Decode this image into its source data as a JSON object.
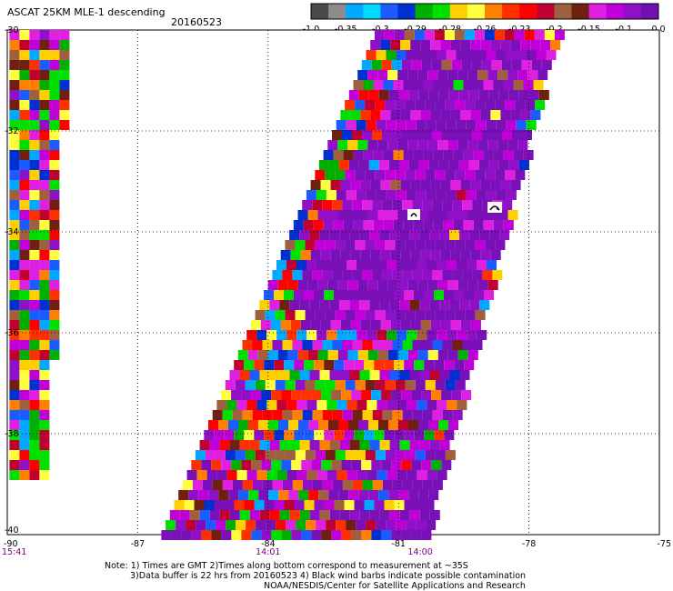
{
  "header": {
    "product": "ASCAT 25KM MLE-1 descending",
    "date": "20160523"
  },
  "colorbar": {
    "colors": [
      "#4a4a4a",
      "#8c8c8c",
      "#00a8ff",
      "#00d8ff",
      "#1a5cff",
      "#0030d0",
      "#00b000",
      "#00e000",
      "#ffd000",
      "#ffff40",
      "#ff8000",
      "#ff3000",
      "#ff0000",
      "#c00030",
      "#a06040",
      "#702010",
      "#e020e0",
      "#c000d8",
      "#9010c8",
      "#7010b0"
    ],
    "labels": [
      "-1.0",
      "-0.35",
      "-0.3",
      "-0.29",
      "-0.28",
      "-0.26",
      "-0.23",
      "-0.2",
      "-0.15",
      "-0.1",
      "0.0"
    ]
  },
  "map": {
    "lon_range": [
      -90,
      -75
    ],
    "lat_range": [
      -40,
      -30
    ],
    "lon_ticks": [
      "-90",
      "-87",
      "-84",
      "-81",
      "-78",
      "-75"
    ],
    "lat_ticks": [
      "-30",
      "-32",
      "-34",
      "-36",
      "-38",
      "-40"
    ],
    "times": [
      {
        "lon": -90.0,
        "label": "15:41"
      },
      {
        "lon": -84.0,
        "label": "14:01"
      },
      {
        "lon": -80.5,
        "label": "14:00"
      }
    ],
    "time_color": "#800080",
    "swaths": [
      {
        "name": "west-swath",
        "corners": [
          [
            -89.95,
            -30.0
          ],
          [
            -88.7,
            -30.0
          ],
          [
            -89.15,
            -34.4
          ],
          [
            -89.95,
            -38.9
          ]
        ]
      },
      {
        "name": "main-swath",
        "corners": [
          [
            -81.55,
            -30.0
          ],
          [
            -77.4,
            -30.0
          ],
          [
            -80.4,
            -40.0
          ],
          [
            -86.5,
            -40.0
          ]
        ]
      }
    ]
  },
  "notes": {
    "line1": "Note: 1) Times are GMT 2)Times along bottom correspond to measurement at ~35S",
    "line2": "3)Data buffer is 22 hrs from 20160523 4) Black wind barbs indicate possible contamination",
    "line3": "NOAA/NESDIS/Center for Satellite Applications and Research"
  }
}
